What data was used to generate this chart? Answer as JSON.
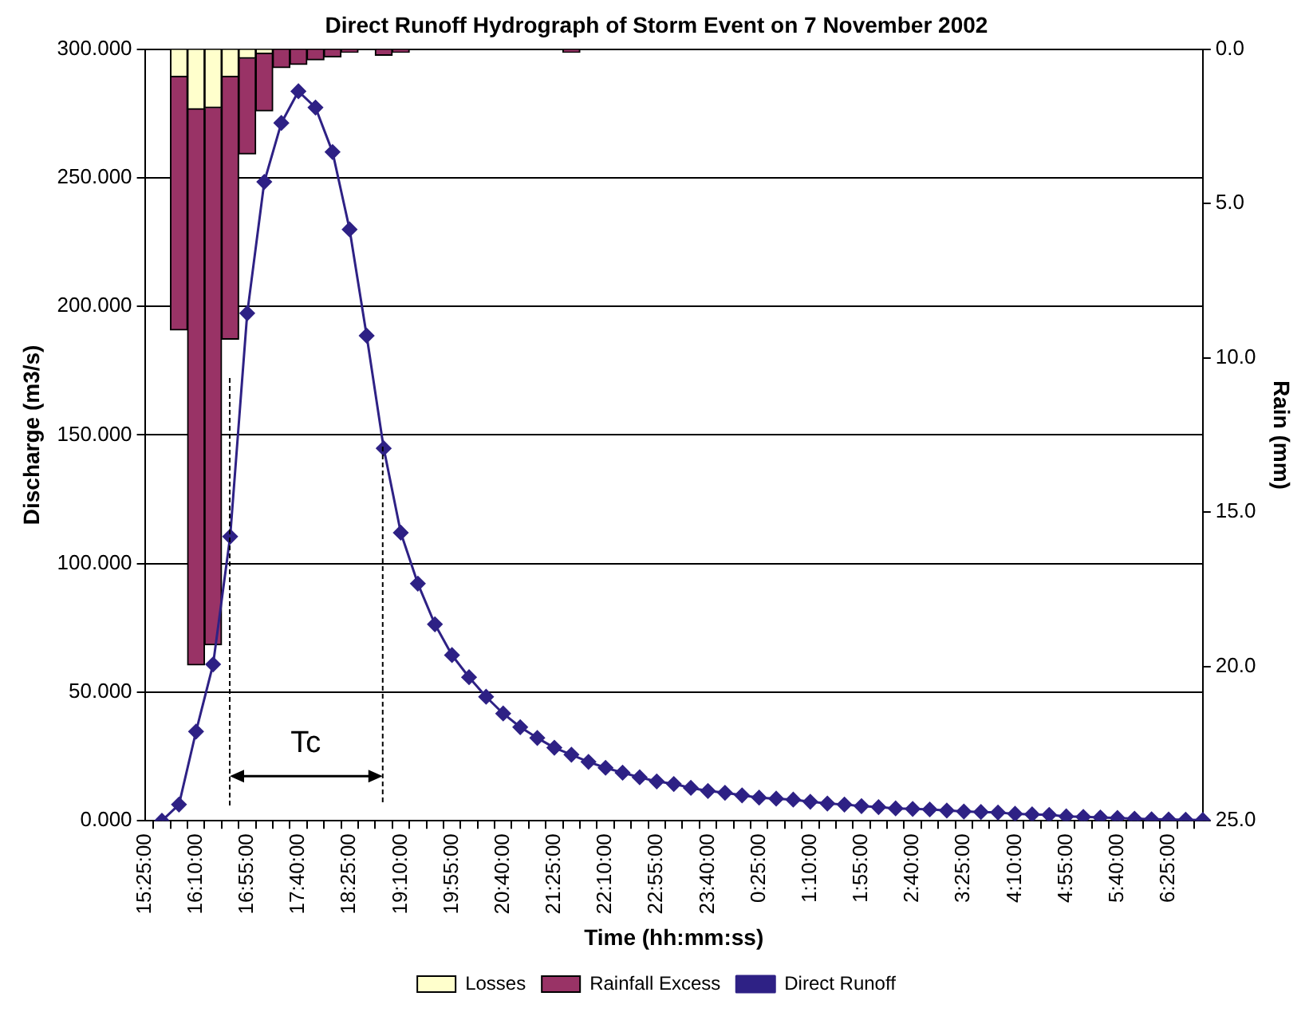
{
  "chart_data": {
    "type": "bar",
    "title": "Direct Runoff Hydrograph of Storm Event on 7 November 2002",
    "xlabel": "Time (hh:mm:ss)",
    "ylabel": "Discharge (m3/s)",
    "y2label": "Rain (mm)",
    "categories": [
      "15:25:00",
      null,
      null,
      "16:10:00",
      null,
      null,
      "16:55:00",
      null,
      null,
      "17:40:00",
      null,
      null,
      "18:25:00",
      null,
      null,
      "19:10:00",
      null,
      null,
      "19:55:00",
      null,
      null,
      "20:40:00",
      null,
      null,
      "21:25:00",
      null,
      null,
      "22:10:00",
      null,
      null,
      "22:55:00",
      null,
      null,
      "23:40:00",
      null,
      null,
      "0:25:00",
      null,
      null,
      "1:10:00",
      null,
      null,
      "1:55:00",
      null,
      null,
      "2:40:00",
      null,
      null,
      "3:25:00",
      null,
      null,
      "4:10:00",
      null,
      null,
      "4:55:00",
      null,
      null,
      "5:40:00",
      null,
      null,
      "6:25:00",
      null,
      null
    ],
    "series": [
      {
        "name": "Losses",
        "axis": "y2",
        "color": "#ffffcc",
        "values": [
          null,
          null,
          0.9,
          1.95,
          1.9,
          0.9,
          0.3,
          0.15,
          null,
          null,
          null,
          null,
          null,
          null,
          null,
          null,
          null,
          null,
          null,
          null,
          null,
          null,
          null,
          null,
          null,
          null,
          null,
          null,
          null,
          null,
          null,
          null,
          null,
          null,
          null,
          null,
          null,
          null,
          null,
          null,
          null,
          null,
          null,
          null,
          null,
          null,
          null,
          null,
          null,
          null,
          null,
          null,
          null,
          null,
          null,
          null,
          null,
          null,
          null,
          null,
          null,
          null,
          null
        ]
      },
      {
        "name": "Rainfall Excess",
        "axis": "y2",
        "color": "#993366",
        "values": [
          null,
          null,
          8.2,
          18.0,
          17.4,
          8.5,
          3.1,
          1.85,
          0.6,
          0.5,
          0.35,
          0.25,
          0.1,
          null,
          0.2,
          0.1,
          null,
          null,
          null,
          null,
          null,
          null,
          null,
          null,
          null,
          0.1,
          null,
          null,
          null,
          null,
          null,
          null,
          null,
          null,
          null,
          null,
          null,
          null,
          null,
          null,
          null,
          null,
          null,
          null,
          null,
          null,
          null,
          null,
          null,
          null,
          null,
          null,
          null,
          null,
          null,
          null,
          null,
          null,
          null,
          null,
          null,
          null,
          null
        ]
      },
      {
        "name": "Direct Runoff",
        "type": "line",
        "color": "#2e2185",
        "marker": "diamond",
        "line_style": "solid",
        "values": [
          null,
          0,
          6.3,
          34.7,
          60.8,
          110.5,
          197.3,
          248.4,
          271.3,
          283.6,
          277.3,
          260,
          229.9,
          188.6,
          144.8,
          112,
          92.2,
          76.4,
          64.4,
          55.8,
          48.2,
          41.7,
          36.4,
          32.2,
          28.4,
          25.7,
          22.9,
          20.6,
          18.7,
          16.9,
          15.3,
          14.3,
          12.8,
          11.6,
          10.9,
          9.9,
          9.0,
          8.6,
          8.2,
          7.4,
          6.7,
          6.3,
          5.7,
          5.3,
          4.8,
          4.6,
          4.4,
          4.0,
          3.6,
          3.4,
          3.2,
          2.7,
          2.5,
          2.3,
          1.7,
          1.5,
          1.3,
          1.1,
          0.8,
          0.6,
          0.5,
          0.4,
          0.3
        ]
      }
    ],
    "stacked": true,
    "ylim": [
      0,
      300
    ],
    "yticks": [
      {
        "value": 0,
        "label": "0.000"
      },
      {
        "value": 50,
        "label": "50.000"
      },
      {
        "value": 100,
        "label": "100.000"
      },
      {
        "value": 150,
        "label": "150.000"
      },
      {
        "value": 200,
        "label": "200.000"
      },
      {
        "value": 250,
        "label": "250.000"
      },
      {
        "value": 300,
        "label": "300.000"
      }
    ],
    "y2lim": [
      25,
      0
    ],
    "y2ticks": [
      {
        "value": 0,
        "label": "0.0"
      },
      {
        "value": 5,
        "label": "5.0"
      },
      {
        "value": 10,
        "label": "10.0"
      },
      {
        "value": 15,
        "label": "15.0"
      },
      {
        "value": 20,
        "label": "20.0"
      },
      {
        "value": 25,
        "label": "25.0"
      }
    ],
    "annotations": [
      "Tc"
    ],
    "grid": "y",
    "legend": "bottom"
  }
}
